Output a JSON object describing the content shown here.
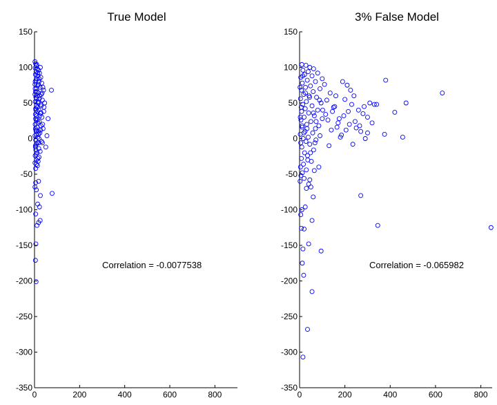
{
  "chart_data": [
    {
      "type": "scatter",
      "title": "True Model",
      "xlim": [
        0,
        900
      ],
      "ylim": [
        -350,
        150
      ],
      "x_ticks": [
        0,
        200,
        400,
        600,
        800
      ],
      "y_ticks": [
        -350,
        -300,
        -250,
        -200,
        -150,
        -100,
        -50,
        0,
        50,
        100,
        150
      ],
      "grid": false,
      "annotation": "Correlation = -0.0077538",
      "marker_color": "#0000ff",
      "points": [
        [
          2,
          108
        ],
        [
          5,
          105
        ],
        [
          8,
          102
        ],
        [
          3,
          99
        ],
        [
          12,
          98
        ],
        [
          18,
          96
        ],
        [
          7,
          94
        ],
        [
          22,
          92
        ],
        [
          4,
          90
        ],
        [
          15,
          88
        ],
        [
          28,
          86
        ],
        [
          10,
          84
        ],
        [
          6,
          82
        ],
        [
          20,
          80
        ],
        [
          32,
          78
        ],
        [
          2,
          76
        ],
        [
          14,
          74
        ],
        [
          25,
          72
        ],
        [
          9,
          70
        ],
        [
          40,
          68
        ],
        [
          75,
          68
        ],
        [
          4,
          66
        ],
        [
          18,
          64
        ],
        [
          30,
          62
        ],
        [
          12,
          60
        ],
        [
          6,
          58
        ],
        [
          22,
          56
        ],
        [
          35,
          54
        ],
        [
          3,
          52
        ],
        [
          16,
          50
        ],
        [
          28,
          48
        ],
        [
          8,
          46
        ],
        [
          42,
          44
        ],
        [
          5,
          42
        ],
        [
          19,
          40
        ],
        [
          13,
          38
        ],
        [
          26,
          36
        ],
        [
          4,
          34
        ],
        [
          10,
          32
        ],
        [
          33,
          30
        ],
        [
          60,
          28
        ],
        [
          7,
          26
        ],
        [
          21,
          24
        ],
        [
          15,
          22
        ],
        [
          3,
          20
        ],
        [
          29,
          18
        ],
        [
          11,
          16
        ],
        [
          38,
          14
        ],
        [
          6,
          12
        ],
        [
          17,
          10
        ],
        [
          24,
          8
        ],
        [
          9,
          6
        ],
        [
          2,
          4
        ],
        [
          55,
          4
        ],
        [
          14,
          2
        ],
        [
          20,
          0
        ],
        [
          5,
          -2
        ],
        [
          31,
          -4
        ],
        [
          12,
          -6
        ],
        [
          8,
          -8
        ],
        [
          50,
          -12
        ],
        [
          4,
          -10
        ],
        [
          19,
          -14
        ],
        [
          6,
          -16
        ],
        [
          11,
          -20
        ],
        [
          3,
          -24
        ],
        [
          15,
          -28
        ],
        [
          8,
          -30
        ],
        [
          2,
          -34
        ],
        [
          13,
          -38
        ],
        [
          5,
          -42
        ],
        [
          9,
          -36
        ],
        [
          20,
          -26
        ],
        [
          25,
          -18
        ],
        [
          7,
          -22
        ],
        [
          35,
          -6
        ],
        [
          16,
          -32
        ],
        [
          5,
          -62
        ],
        [
          18,
          -60
        ],
        [
          2,
          -68
        ],
        [
          8,
          -72
        ],
        [
          26,
          -80
        ],
        [
          78,
          -77
        ],
        [
          14,
          -92
        ],
        [
          22,
          -96
        ],
        [
          5,
          -106
        ],
        [
          25,
          -115
        ],
        [
          18,
          -118
        ],
        [
          11,
          -122
        ],
        [
          6,
          -148
        ],
        [
          4,
          -171
        ],
        [
          7,
          -201
        ],
        [
          3,
          70
        ],
        [
          11,
          66
        ],
        [
          23,
          60
        ],
        [
          16,
          52
        ],
        [
          30,
          46
        ],
        [
          6,
          40
        ],
        [
          24,
          32
        ],
        [
          13,
          26
        ],
        [
          36,
          20
        ],
        [
          4,
          14
        ],
        [
          18,
          6
        ],
        [
          27,
          12
        ],
        [
          9,
          56
        ],
        [
          37,
          72
        ],
        [
          21,
          84
        ],
        [
          14,
          92
        ],
        [
          3,
          80
        ],
        [
          45,
          50
        ],
        [
          41,
          38
        ],
        [
          2,
          62
        ],
        [
          26,
          100
        ],
        [
          10,
          104
        ],
        [
          17,
          76
        ],
        [
          34,
          64
        ],
        [
          5,
          28
        ],
        [
          12,
          44
        ],
        [
          29,
          36
        ],
        [
          7,
          10
        ],
        [
          19,
          -6
        ],
        [
          4,
          -12
        ]
      ]
    },
    {
      "type": "scatter",
      "title": "3% False Model",
      "xlim": [
        0,
        850
      ],
      "ylim": [
        -350,
        150
      ],
      "x_ticks": [
        0,
        200,
        400,
        600,
        800
      ],
      "y_ticks": [
        -350,
        -300,
        -250,
        -200,
        -150,
        -100,
        -50,
        0,
        50,
        100,
        150
      ],
      "grid": false,
      "annotation": "Correlation = -0.065982",
      "marker_color": "#0000ff",
      "points": [
        [
          10,
          104
        ],
        [
          28,
          103
        ],
        [
          45,
          100
        ],
        [
          62,
          98
        ],
        [
          15,
          96
        ],
        [
          38,
          94
        ],
        [
          80,
          92
        ],
        [
          22,
          90
        ],
        [
          55,
          88
        ],
        [
          5,
          86
        ],
        [
          100,
          84
        ],
        [
          34,
          82
        ],
        [
          70,
          80
        ],
        [
          12,
          78
        ],
        [
          110,
          76
        ],
        [
          48,
          74
        ],
        [
          26,
          72
        ],
        [
          90,
          70
        ],
        [
          8,
          68
        ],
        [
          60,
          66
        ],
        [
          135,
          64
        ],
        [
          18,
          62
        ],
        [
          42,
          60
        ],
        [
          75,
          58
        ],
        [
          4,
          56
        ],
        [
          120,
          54
        ],
        [
          30,
          52
        ],
        [
          95,
          50
        ],
        [
          14,
          48
        ],
        [
          55,
          46
        ],
        [
          150,
          44
        ],
        [
          25,
          42
        ],
        [
          80,
          40
        ],
        [
          9,
          38
        ],
        [
          40,
          36
        ],
        [
          115,
          34
        ],
        [
          65,
          32
        ],
        [
          20,
          30
        ],
        [
          100,
          28
        ],
        [
          6,
          26
        ],
        [
          50,
          24
        ],
        [
          170,
          22
        ],
        [
          32,
          20
        ],
        [
          85,
          18
        ],
        [
          12,
          16
        ],
        [
          70,
          14
        ],
        [
          140,
          12
        ],
        [
          24,
          10
        ],
        [
          58,
          8
        ],
        [
          3,
          6
        ],
        [
          90,
          4
        ],
        [
          38,
          2
        ],
        [
          16,
          0
        ],
        [
          72,
          -2
        ],
        [
          28,
          -4
        ],
        [
          45,
          -8
        ],
        [
          130,
          -10
        ],
        [
          10,
          -12
        ],
        [
          62,
          -16
        ],
        [
          22,
          -20
        ],
        [
          35,
          -24
        ],
        [
          8,
          -28
        ],
        [
          52,
          -32
        ],
        [
          17,
          -36
        ],
        [
          4,
          -40
        ],
        [
          30,
          -44
        ],
        [
          12,
          -48
        ],
        [
          6,
          -52
        ],
        [
          20,
          -56
        ],
        [
          2,
          -60
        ],
        [
          40,
          -64
        ],
        [
          190,
          80
        ],
        [
          210,
          75
        ],
        [
          240,
          60
        ],
        [
          200,
          55
        ],
        [
          230,
          48
        ],
        [
          260,
          40
        ],
        [
          280,
          35
        ],
        [
          300,
          30
        ],
        [
          220,
          20
        ],
        [
          250,
          15
        ],
        [
          270,
          10
        ],
        [
          185,
          5
        ],
        [
          290,
          0
        ],
        [
          310,
          50
        ],
        [
          330,
          48
        ],
        [
          175,
          28
        ],
        [
          205,
          12
        ],
        [
          225,
          68
        ],
        [
          215,
          38
        ],
        [
          245,
          24
        ],
        [
          160,
          60
        ],
        [
          155,
          45
        ],
        [
          195,
          32
        ],
        [
          180,
          2
        ],
        [
          235,
          -8
        ],
        [
          265,
          18
        ],
        [
          285,
          45
        ],
        [
          300,
          8
        ],
        [
          320,
          22
        ],
        [
          340,
          48
        ],
        [
          380,
          82
        ],
        [
          420,
          37
        ],
        [
          470,
          50
        ],
        [
          630,
          64
        ],
        [
          455,
          2
        ],
        [
          375,
          6
        ],
        [
          345,
          -122
        ],
        [
          270,
          -80
        ],
        [
          95,
          -158
        ],
        [
          40,
          -148
        ],
        [
          55,
          -115
        ],
        [
          20,
          -127
        ],
        [
          8,
          -126
        ],
        [
          25,
          -96
        ],
        [
          10,
          -100
        ],
        [
          5,
          -107
        ],
        [
          15,
          -155
        ],
        [
          12,
          -175
        ],
        [
          18,
          -192
        ],
        [
          55,
          -215
        ],
        [
          35,
          -268
        ],
        [
          15,
          -307
        ],
        [
          60,
          -82
        ],
        [
          45,
          -58
        ],
        [
          85,
          -40
        ],
        [
          65,
          -45
        ],
        [
          30,
          -70
        ],
        [
          50,
          -68
        ],
        [
          845,
          -125
        ],
        [
          3,
          30
        ],
        [
          7,
          44
        ],
        [
          11,
          18
        ],
        [
          2,
          72
        ],
        [
          19,
          8
        ],
        [
          26,
          64
        ],
        [
          33,
          14
        ],
        [
          5,
          -6
        ],
        [
          14,
          88
        ],
        [
          44,
          58
        ],
        [
          61,
          36
        ],
        [
          73,
          24
        ],
        [
          88,
          54
        ],
        [
          102,
          40
        ],
        [
          125,
          26
        ],
        [
          145,
          38
        ],
        [
          165,
          16
        ],
        [
          36,
          -30
        ],
        [
          48,
          -20
        ],
        [
          68,
          -6
        ]
      ]
    }
  ]
}
